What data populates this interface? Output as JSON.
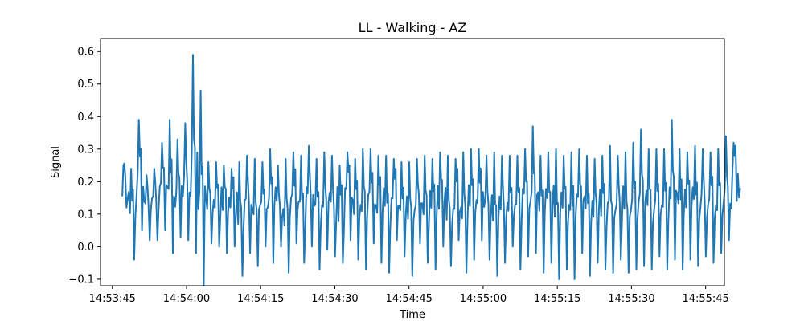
{
  "chart_data": {
    "type": "line",
    "title": "LL - Walking - AZ",
    "xlabel": "Time",
    "ylabel": "Signal",
    "x_range_seconds_after_14_53_45": [
      -2.4,
      123.8
    ],
    "ylim": [
      -0.12,
      0.64
    ],
    "x_ticks": [
      {
        "t": 0,
        "label": "14:53:45"
      },
      {
        "t": 15,
        "label": "14:54:00"
      },
      {
        "t": 30,
        "label": "14:54:15"
      },
      {
        "t": 45,
        "label": "14:54:30"
      },
      {
        "t": 60,
        "label": "14:54:45"
      },
      {
        "t": 75,
        "label": "14:55:00"
      },
      {
        "t": 90,
        "label": "14:55:15"
      },
      {
        "t": 105,
        "label": "14:55:30"
      },
      {
        "t": 120,
        "label": "14:55:45"
      }
    ],
    "y_ticks": [
      {
        "v": -0.1,
        "label": "−0.1"
      },
      {
        "v": 0.0,
        "label": "0.0"
      },
      {
        "v": 0.1,
        "label": "0.1"
      },
      {
        "v": 0.2,
        "label": "0.2"
      },
      {
        "v": 0.3,
        "label": "0.3"
      },
      {
        "v": 0.4,
        "label": "0.4"
      },
      {
        "v": 0.5,
        "label": "0.5"
      },
      {
        "v": 0.6,
        "label": "0.6"
      }
    ],
    "grid": false,
    "line_color": "#1f77b4",
    "series": [
      {
        "x_start": "14:53:47",
        "x_end": "14:55:52",
        "x_start_seconds": 2.0,
        "x_end_seconds": 127.0,
        "step_peaks": [
          0.25,
          0.24,
          0.39,
          0.22,
          0.24,
          0.32,
          0.39,
          0.33,
          0.38,
          0.59,
          0.48,
          0.26,
          0.26,
          0.25,
          0.24,
          0.26,
          0.28,
          0.27,
          0.26,
          0.3,
          0.25,
          0.27,
          0.29,
          0.28,
          0.31,
          0.27,
          0.29,
          0.28,
          0.25,
          0.29,
          0.27,
          0.3,
          0.3,
          0.28,
          0.28,
          0.27,
          0.26,
          0.26,
          0.27,
          0.28,
          0.27,
          0.29,
          0.28,
          0.27,
          0.29,
          0.3,
          0.3,
          0.28,
          0.29,
          0.28,
          0.28,
          0.28,
          0.3,
          0.37,
          0.28,
          0.29,
          0.3,
          0.28,
          0.29,
          0.3,
          0.28,
          0.27,
          0.28,
          0.31,
          0.28,
          0.29,
          0.32,
          0.36,
          0.3,
          0.3,
          0.3,
          0.39,
          0.3,
          0.29,
          0.31,
          0.3,
          0.29,
          0.3,
          0.34,
          0.32
        ],
        "step_troughs": [
          0.12,
          -0.04,
          0.05,
          0.02,
          0.02,
          0.05,
          -0.02,
          0.03,
          0.02,
          -0.02,
          -0.12,
          0.01,
          0.0,
          -0.02,
          0.0,
          -0.09,
          -0.02,
          -0.06,
          0.0,
          -0.05,
          0.0,
          -0.08,
          0.01,
          -0.05,
          0.0,
          -0.07,
          -0.01,
          -0.03,
          -0.05,
          0.02,
          -0.04,
          -0.07,
          0.01,
          -0.05,
          -0.08,
          0.02,
          -0.03,
          -0.09,
          0.01,
          -0.05,
          -0.07,
          0.0,
          -0.06,
          0.02,
          -0.08,
          -0.04,
          0.02,
          -0.04,
          -0.09,
          -0.05,
          0.0,
          -0.07,
          -0.03,
          -0.02,
          -0.08,
          -0.05,
          -0.1,
          -0.07,
          -0.1,
          -0.02,
          -0.09,
          -0.05,
          -0.07,
          -0.08,
          -0.04,
          -0.08,
          -0.07,
          -0.06,
          -0.07,
          -0.03,
          -0.07,
          -0.04,
          -0.07,
          -0.04,
          -0.06,
          -0.03,
          -0.05,
          -0.02,
          0.02,
          0.14
        ]
      }
    ]
  }
}
